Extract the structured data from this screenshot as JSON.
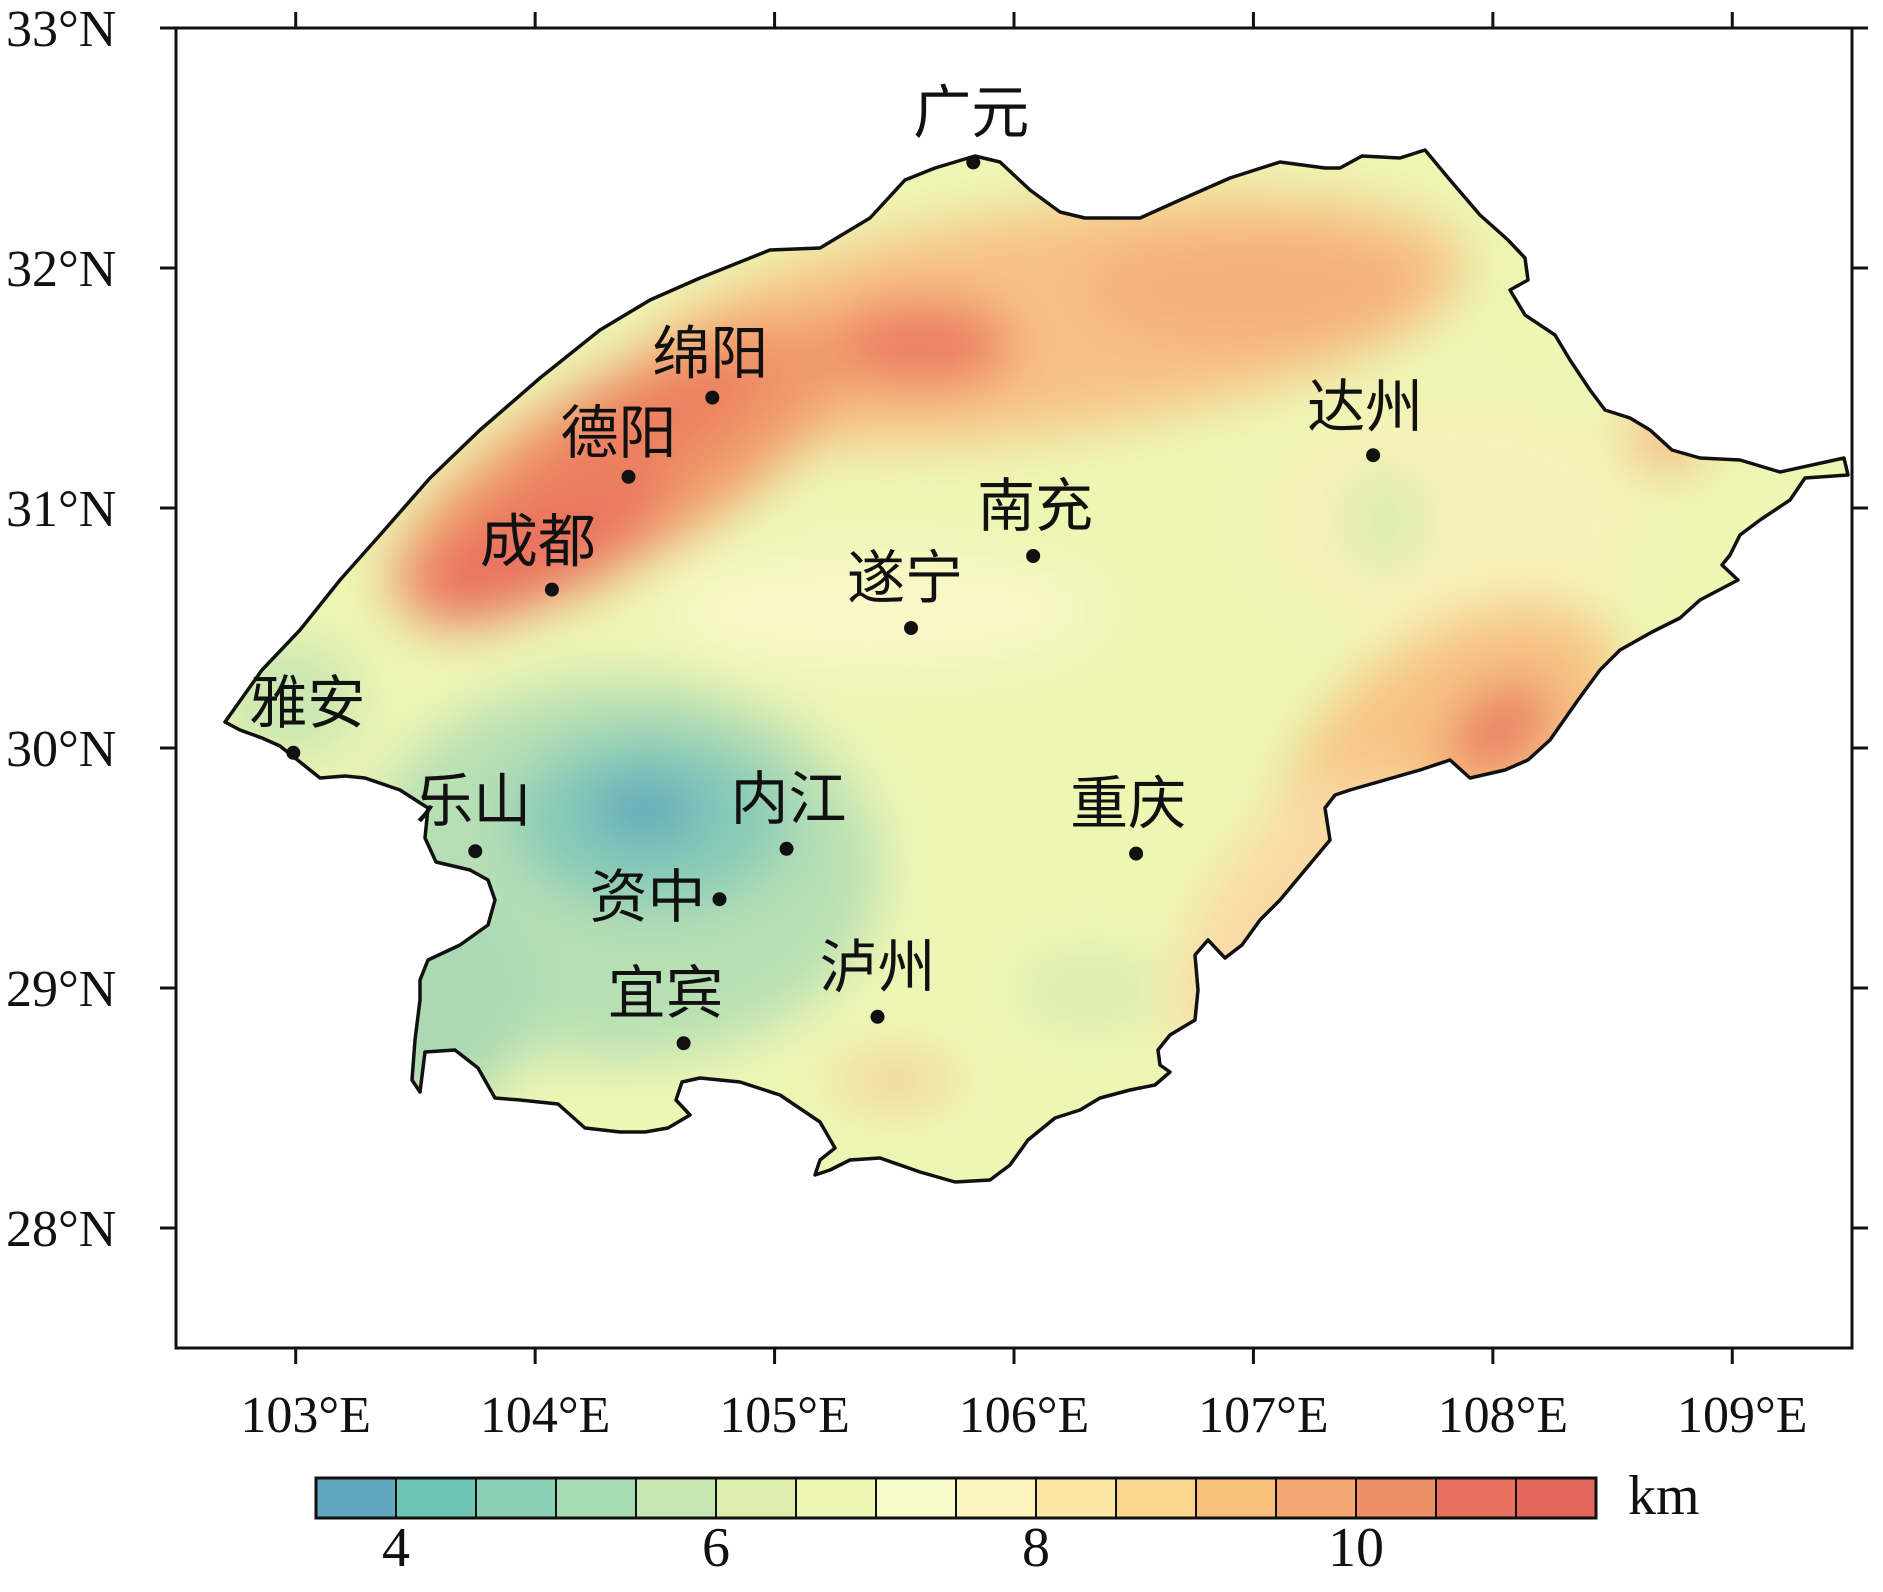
{
  "map": {
    "lon_ticks": [
      "103°E",
      "104°E",
      "105°E",
      "106°E",
      "107°E",
      "108°E",
      "109°E"
    ],
    "lat_ticks": [
      "28°N",
      "29°N",
      "30°N",
      "31°N",
      "32°N",
      "33°N"
    ],
    "lon_range": [
      102.5,
      109.5
    ],
    "lat_range": [
      27.5,
      33.0
    ]
  },
  "cities": [
    {
      "name": "广元",
      "lon": 105.83,
      "lat": 32.44
    },
    {
      "name": "绵阳",
      "lon": 104.74,
      "lat": 31.46
    },
    {
      "name": "德阳",
      "lon": 104.39,
      "lat": 31.13
    },
    {
      "name": "成都",
      "lon": 104.07,
      "lat": 30.66
    },
    {
      "name": "达州",
      "lon": 107.5,
      "lat": 31.22
    },
    {
      "name": "南充",
      "lon": 106.08,
      "lat": 30.8
    },
    {
      "name": "遂宁",
      "lon": 105.57,
      "lat": 30.5
    },
    {
      "name": "雅安",
      "lon": 102.99,
      "lat": 29.98
    },
    {
      "name": "乐山",
      "lon": 103.75,
      "lat": 29.57
    },
    {
      "name": "内江",
      "lon": 105.05,
      "lat": 29.58
    },
    {
      "name": "资中",
      "lon": 104.77,
      "lat": 29.37
    },
    {
      "name": "重庆",
      "lon": 106.51,
      "lat": 29.56
    },
    {
      "name": "泸州",
      "lon": 105.43,
      "lat": 28.88
    },
    {
      "name": "宜宾",
      "lon": 104.62,
      "lat": 28.77
    }
  ],
  "colorbar": {
    "unit": "km",
    "tick_labels": [
      "4",
      "6",
      "8",
      "10"
    ],
    "tick_values": [
      4,
      6,
      8,
      10
    ],
    "range": [
      3.5,
      11.5
    ],
    "colors": [
      "#5fa8bd",
      "#6ec4b5",
      "#8ad0b5",
      "#a8dbb4",
      "#c6e6b2",
      "#dcefae",
      "#eef6b4",
      "#f7fbc8",
      "#fdf5c0",
      "#fde7a5",
      "#fcd58d",
      "#f9c07c",
      "#f5a874",
      "#ef8f68",
      "#e9705e",
      "#e3665c"
    ]
  }
}
